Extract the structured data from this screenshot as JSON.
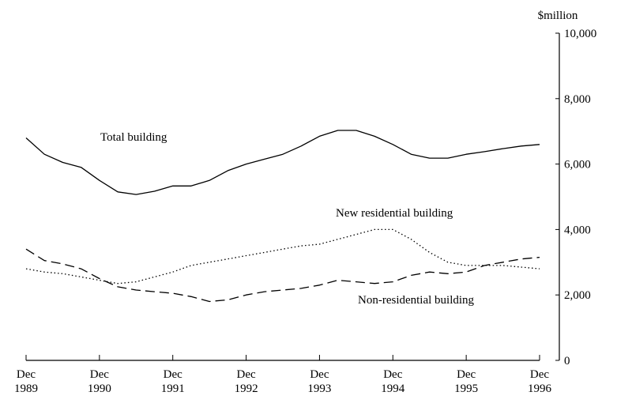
{
  "chart_data": {
    "type": "line",
    "y_axis_label": "$million",
    "categories": [
      "Dec 1989",
      null,
      null,
      null,
      "Dec 1990",
      null,
      null,
      null,
      "Dec 1991",
      null,
      null,
      null,
      "Dec 1992",
      null,
      null,
      null,
      "Dec 1993",
      null,
      null,
      null,
      "Dec 1994",
      null,
      null,
      null,
      "Dec 1995",
      null,
      null,
      null,
      "Dec 1996"
    ],
    "series": [
      {
        "name": "Total building",
        "color": "#000000",
        "style": "solid",
        "values": [
          6800,
          6300,
          6050,
          5900,
          5500,
          5150,
          5070,
          5170,
          5330,
          5330,
          5500,
          5800,
          6000,
          6150,
          6300,
          6550,
          6850,
          7030,
          7030,
          6850,
          6600,
          6300,
          6180,
          6180,
          6300,
          6380,
          6470,
          6550,
          6600
        ]
      },
      {
        "name": "New residential building",
        "color": "#000000",
        "style": "dotted",
        "values": [
          2800,
          2700,
          2650,
          2550,
          2450,
          2350,
          2400,
          2550,
          2700,
          2900,
          3000,
          3100,
          3200,
          3300,
          3400,
          3500,
          3550,
          3700,
          3850,
          4000,
          4000,
          3700,
          3300,
          3000,
          2900,
          2900,
          2900,
          2850,
          2800
        ]
      },
      {
        "name": "Non-residential building",
        "color": "#000000",
        "style": "dashed",
        "values": [
          3400,
          3050,
          2950,
          2800,
          2500,
          2250,
          2150,
          2100,
          2050,
          1950,
          1800,
          1850,
          2000,
          2100,
          2150,
          2200,
          2300,
          2450,
          2400,
          2350,
          2400,
          2600,
          2700,
          2650,
          2700,
          2900,
          3000,
          3100,
          3150
        ]
      }
    ],
    "ylim": [
      0,
      10000
    ],
    "yticks": [
      0,
      {
        "value": 2000,
        "label": "2,000"
      },
      {
        "value": 4000,
        "label": "4,000"
      },
      {
        "value": 6000,
        "label": "6,000"
      },
      {
        "value": 8000,
        "label": "8,000"
      },
      {
        "value": 10000,
        "label": "10,000"
      }
    ],
    "y_axis_side": "right",
    "grid": false
  }
}
